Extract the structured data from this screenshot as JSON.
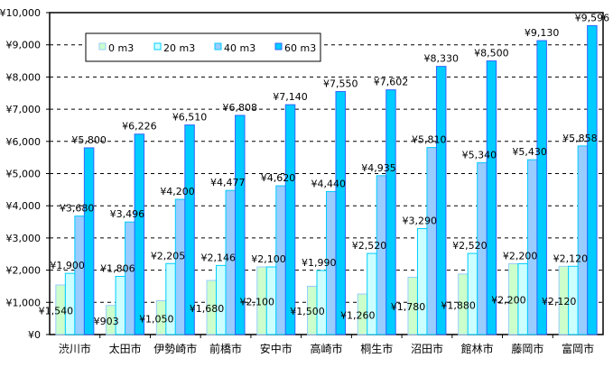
{
  "chart_data": {
    "type": "bar",
    "title": "",
    "xlabel": "",
    "ylabel": "",
    "ylim": [
      0,
      10000
    ],
    "yticks": [
      0,
      1000,
      2000,
      3000,
      4000,
      5000,
      6000,
      7000,
      8000,
      9000,
      10000
    ],
    "ytick_labels": [
      "¥0",
      "¥1,000",
      "¥2,000",
      "¥3,000",
      "¥4,000",
      "¥5,000",
      "¥6,000",
      "¥7,000",
      "¥8,000",
      "¥9,000",
      "¥10,000"
    ],
    "grid": "horizontal dashed",
    "legend_position": "top-left",
    "categories": [
      "渋川市",
      "太田市",
      "伊勢崎市",
      "前橋市",
      "安中市",
      "高崎市",
      "桐生市",
      "沼田市",
      "館林市",
      "藤岡市",
      "富岡市"
    ],
    "series": [
      {
        "name": "0 m3",
        "fill": "#ccffcc",
        "stroke": "#99ccff",
        "values": [
          1540,
          903,
          1050,
          1680,
          2100,
          1500,
          1260,
          1780,
          1880,
          2200,
          2120
        ],
        "labels": [
          "¥1,540",
          "¥903",
          "¥1,050",
          "¥1,680",
          "¥2,100",
          "¥1,500",
          "¥1,260",
          "¥1,780",
          "¥1,880",
          "¥2,200",
          "¥2,120"
        ]
      },
      {
        "name": "20 m3",
        "fill": "#ccffff",
        "stroke": "#00ccff",
        "values": [
          1900,
          1806,
          2205,
          2146,
          2100,
          1990,
          2520,
          3290,
          2520,
          2200,
          2120
        ],
        "labels": [
          "¥1,900",
          "¥1,806",
          "¥2,205",
          "¥2,146",
          "¥2,100",
          "¥1,990",
          "¥2,520",
          "¥3,290",
          "¥2,520",
          "¥2,200",
          "¥2,120"
        ]
      },
      {
        "name": "40 m3",
        "fill": "#99ccff",
        "stroke": "#00ccff",
        "values": [
          3680,
          3496,
          4200,
          4477,
          4620,
          4440,
          4935,
          5810,
          5340,
          5430,
          5858
        ],
        "labels": [
          "¥3,680",
          "¥3,496",
          "¥4,200",
          "¥4,477",
          "¥4,620",
          "¥4,440",
          "¥4,935",
          "¥5,810",
          "¥5,340",
          "¥5,430",
          "¥5,858"
        ]
      },
      {
        "name": "60 m3",
        "fill": "#00ccff",
        "stroke": "#3366ff",
        "values": [
          5800,
          6226,
          6510,
          6808,
          7140,
          7550,
          7602,
          8330,
          8500,
          9130,
          9596
        ],
        "labels": [
          "¥5,800",
          "¥6,226",
          "¥6,510",
          "¥6,808",
          "¥7,140",
          "¥7,550",
          "¥7,602",
          "¥8,330",
          "¥8,500",
          "¥9,130",
          "¥9,596"
        ]
      }
    ]
  }
}
